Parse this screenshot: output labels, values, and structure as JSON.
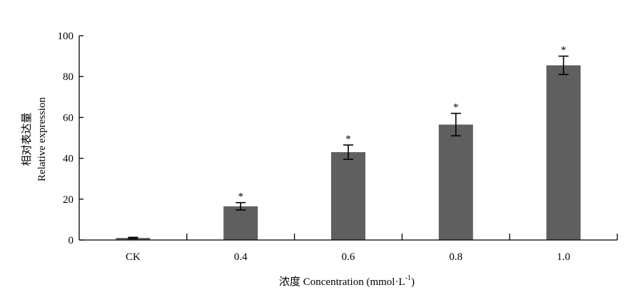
{
  "chart_data": {
    "type": "bar",
    "categories": [
      "CK",
      "0.4",
      "0.6",
      "0.8",
      "1.0"
    ],
    "values": [
      1,
      16.5,
      43,
      56.5,
      85.5
    ],
    "errors": [
      0.3,
      1.8,
      3.5,
      5.5,
      4.5
    ],
    "significance": [
      "",
      "*",
      "*",
      "*",
      "*"
    ],
    "ylim": [
      0,
      100
    ],
    "yticks": [
      0,
      20,
      40,
      60,
      80,
      100
    ],
    "ylabel_cn": "相对表达量",
    "ylabel_en": "Relative expression",
    "xlabel_main": "浓度 Concentration (mmol·L",
    "xlabel_sup": "-1",
    "xlabel_close": ")",
    "bar_color": "#5f5f5f",
    "grid": false
  }
}
